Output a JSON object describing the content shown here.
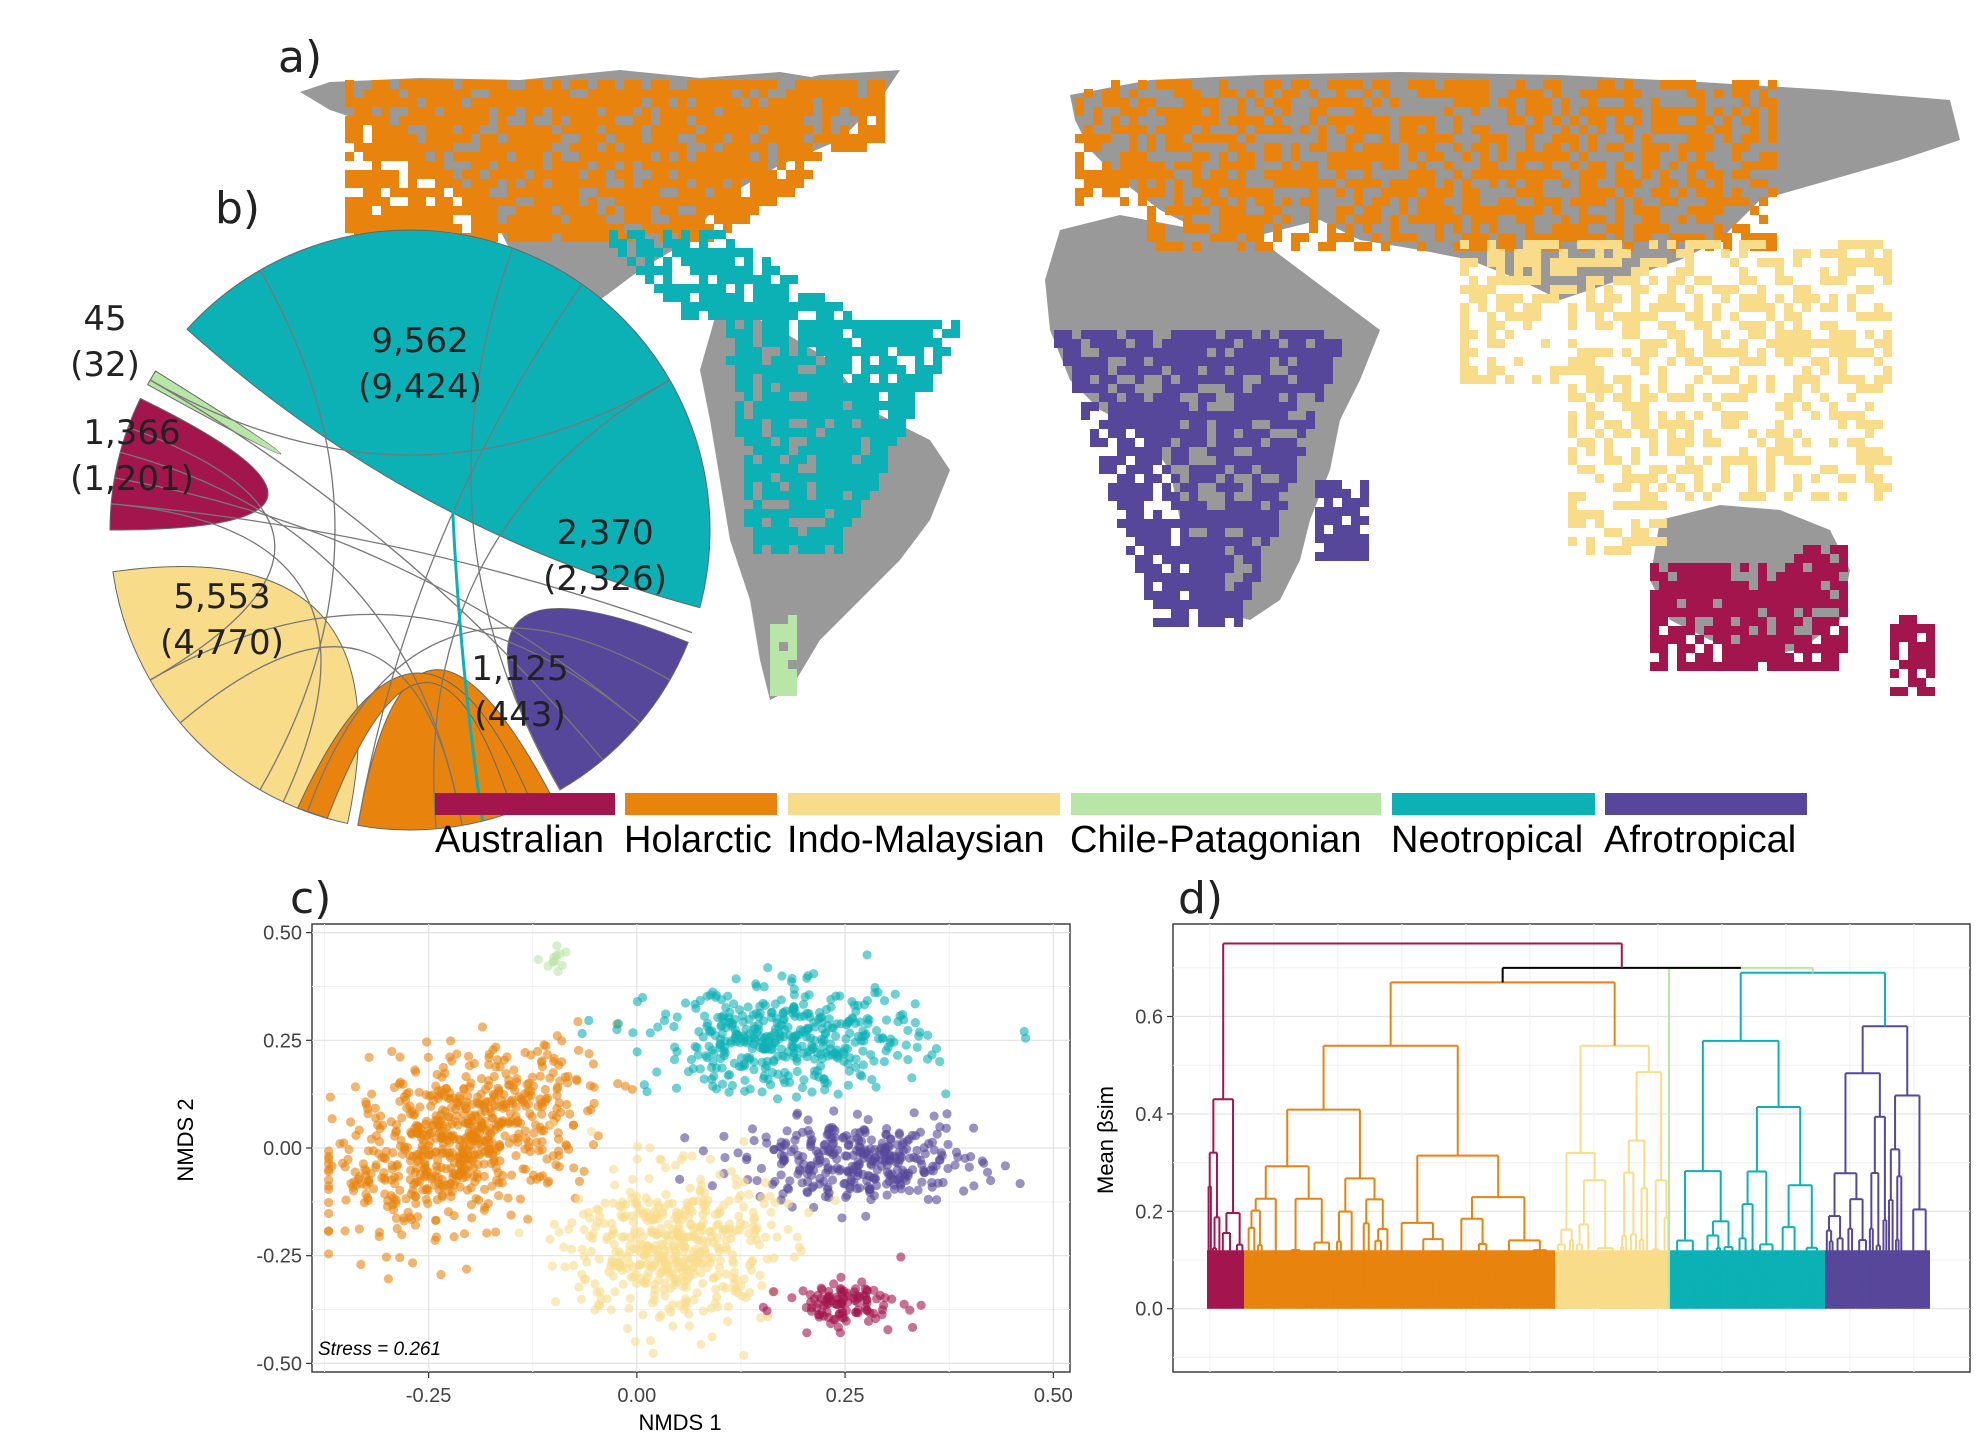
{
  "colors": {
    "Australian": "#A3164D",
    "Holarctic": "#E8830E",
    "Indo-Malaysian": "#F9DC8A",
    "Chile-Patagonian": "#B7E6A7",
    "Neotropical": "#0BB1B5",
    "Afrotropical": "#57479A",
    "land": "#999999"
  },
  "panel_labels": {
    "a": "a)",
    "b": "b)",
    "c": "c)",
    "d": "d)"
  },
  "legend": [
    "Australian",
    "Holarctic",
    "Indo-Malaysian",
    "Chile-Patagonian",
    "Neotropical",
    "Afrotropical"
  ],
  "chart_data": [
    {
      "type": "map",
      "panel": "a",
      "regions": [
        "Holarctic",
        "Neotropical",
        "Chile-Patagonian",
        "Afrotropical",
        "Indo-Malaysian",
        "Australian"
      ]
    },
    {
      "type": "chord",
      "panel": "b",
      "sectors": [
        {
          "region": "Neotropical",
          "total": "9,562",
          "endemic": "(9,424)"
        },
        {
          "region": "Afrotropical",
          "total": "2,370",
          "endemic": "(2,326)"
        },
        {
          "region": "Holarctic",
          "total": "1,125",
          "endemic": "(443)"
        },
        {
          "region": "Indo-Malaysian",
          "total": "5,553",
          "endemic": "(4,770)"
        },
        {
          "region": "Australian",
          "total": "1,366",
          "endemic": "(1,201)"
        },
        {
          "region": "Chile-Patagonian",
          "total": "45",
          "endemic": "(32)"
        }
      ]
    },
    {
      "type": "scatter",
      "panel": "c",
      "xlabel": "NMDS 1",
      "ylabel": "NMDS 2",
      "xlim": [
        -0.39,
        0.52
      ],
      "ylim": [
        -0.52,
        0.52
      ],
      "xticks": [
        "-0.25",
        "0.00",
        "0.25",
        "0.50"
      ],
      "xtick_values": [
        -0.25,
        0,
        0.25,
        0.5
      ],
      "yticks": [
        "0.50",
        "0.25",
        "0.00",
        "-0.25",
        "-0.50"
      ],
      "ytick_values": [
        0.5,
        0.25,
        0,
        -0.25,
        -0.5
      ],
      "annotation": "Stress = 0.261",
      "grid": true,
      "clusters": [
        {
          "region": "Holarctic",
          "center": [
            -0.21,
            0.02
          ],
          "spread": [
            0.075,
            0.09
          ],
          "n": 700
        },
        {
          "region": "Neotropical",
          "center": [
            0.18,
            0.25
          ],
          "spread": [
            0.08,
            0.06
          ],
          "n": 420
        },
        {
          "region": "Afrotropical",
          "center": [
            0.27,
            -0.03
          ],
          "spread": [
            0.07,
            0.045
          ],
          "n": 330
        },
        {
          "region": "Indo-Malaysian",
          "center": [
            0.04,
            -0.23
          ],
          "spread": [
            0.06,
            0.09
          ],
          "n": 480
        },
        {
          "region": "Australian",
          "center": [
            0.25,
            -0.36
          ],
          "spread": [
            0.035,
            0.025
          ],
          "n": 110
        },
        {
          "region": "Chile-Patagonian",
          "center": [
            -0.1,
            0.44
          ],
          "spread": [
            0.01,
            0.015
          ],
          "n": 12
        }
      ]
    },
    {
      "type": "dendrogram",
      "panel": "d",
      "ylabel": "Mean βsim",
      "ylim": [
        -0.13,
        0.79
      ],
      "yticks": [
        "0.6",
        "0.4",
        "0.2",
        "0.0"
      ],
      "ytick_values": [
        0.6,
        0.4,
        0.2,
        0.0
      ],
      "grid": true,
      "clades": [
        {
          "region": "Australian",
          "height": 0.75
        },
        {
          "region": "Holarctic",
          "height": 0.67
        },
        {
          "region": "Indo-Malaysian",
          "height": 0.67
        },
        {
          "region": "Chile-Patagonian",
          "height": 0.7
        },
        {
          "region": "Neotropical",
          "height": 0.7
        },
        {
          "region": "Afrotropical",
          "height": 0.7
        }
      ],
      "merges": [
        0.7,
        0.68,
        0.75
      ]
    }
  ]
}
